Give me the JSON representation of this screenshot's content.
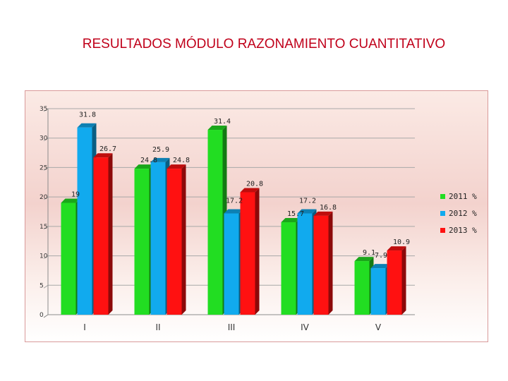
{
  "chart_data": {
    "type": "bar",
    "title": "RESULTADOS MÓDULO RAZONAMIENTO CUANTITATIVO",
    "categories": [
      "I",
      "II",
      "III",
      "IV",
      "V"
    ],
    "series": [
      {
        "name": "2011 %",
        "color": "#22dd22",
        "values": [
          19,
          24.8,
          31.4,
          15.7,
          9.1
        ]
      },
      {
        "name": "2012 %",
        "color": "#11aaee",
        "values": [
          31.8,
          25.9,
          17.2,
          17.2,
          7.9
        ]
      },
      {
        "name": "2013 %",
        "color": "#ff1111",
        "values": [
          26.7,
          24.8,
          20.8,
          16.8,
          10.9
        ]
      }
    ],
    "y_ticks": [
      "0",
      "5",
      "10",
      "15",
      "20",
      "25",
      "30",
      "35"
    ],
    "ylim": [
      0,
      35
    ],
    "xlabel": "",
    "ylabel": "",
    "grid": true,
    "legend": "right",
    "data_labels": [
      [
        "19",
        "31.8",
        "26.7"
      ],
      [
        "24.8",
        "25.9",
        "24.8"
      ],
      [
        "31.4",
        "17.2",
        "20.8"
      ],
      [
        "15.7",
        "17.2",
        "16.8"
      ],
      [
        "9.1",
        "7.9",
        "10.9"
      ]
    ]
  }
}
